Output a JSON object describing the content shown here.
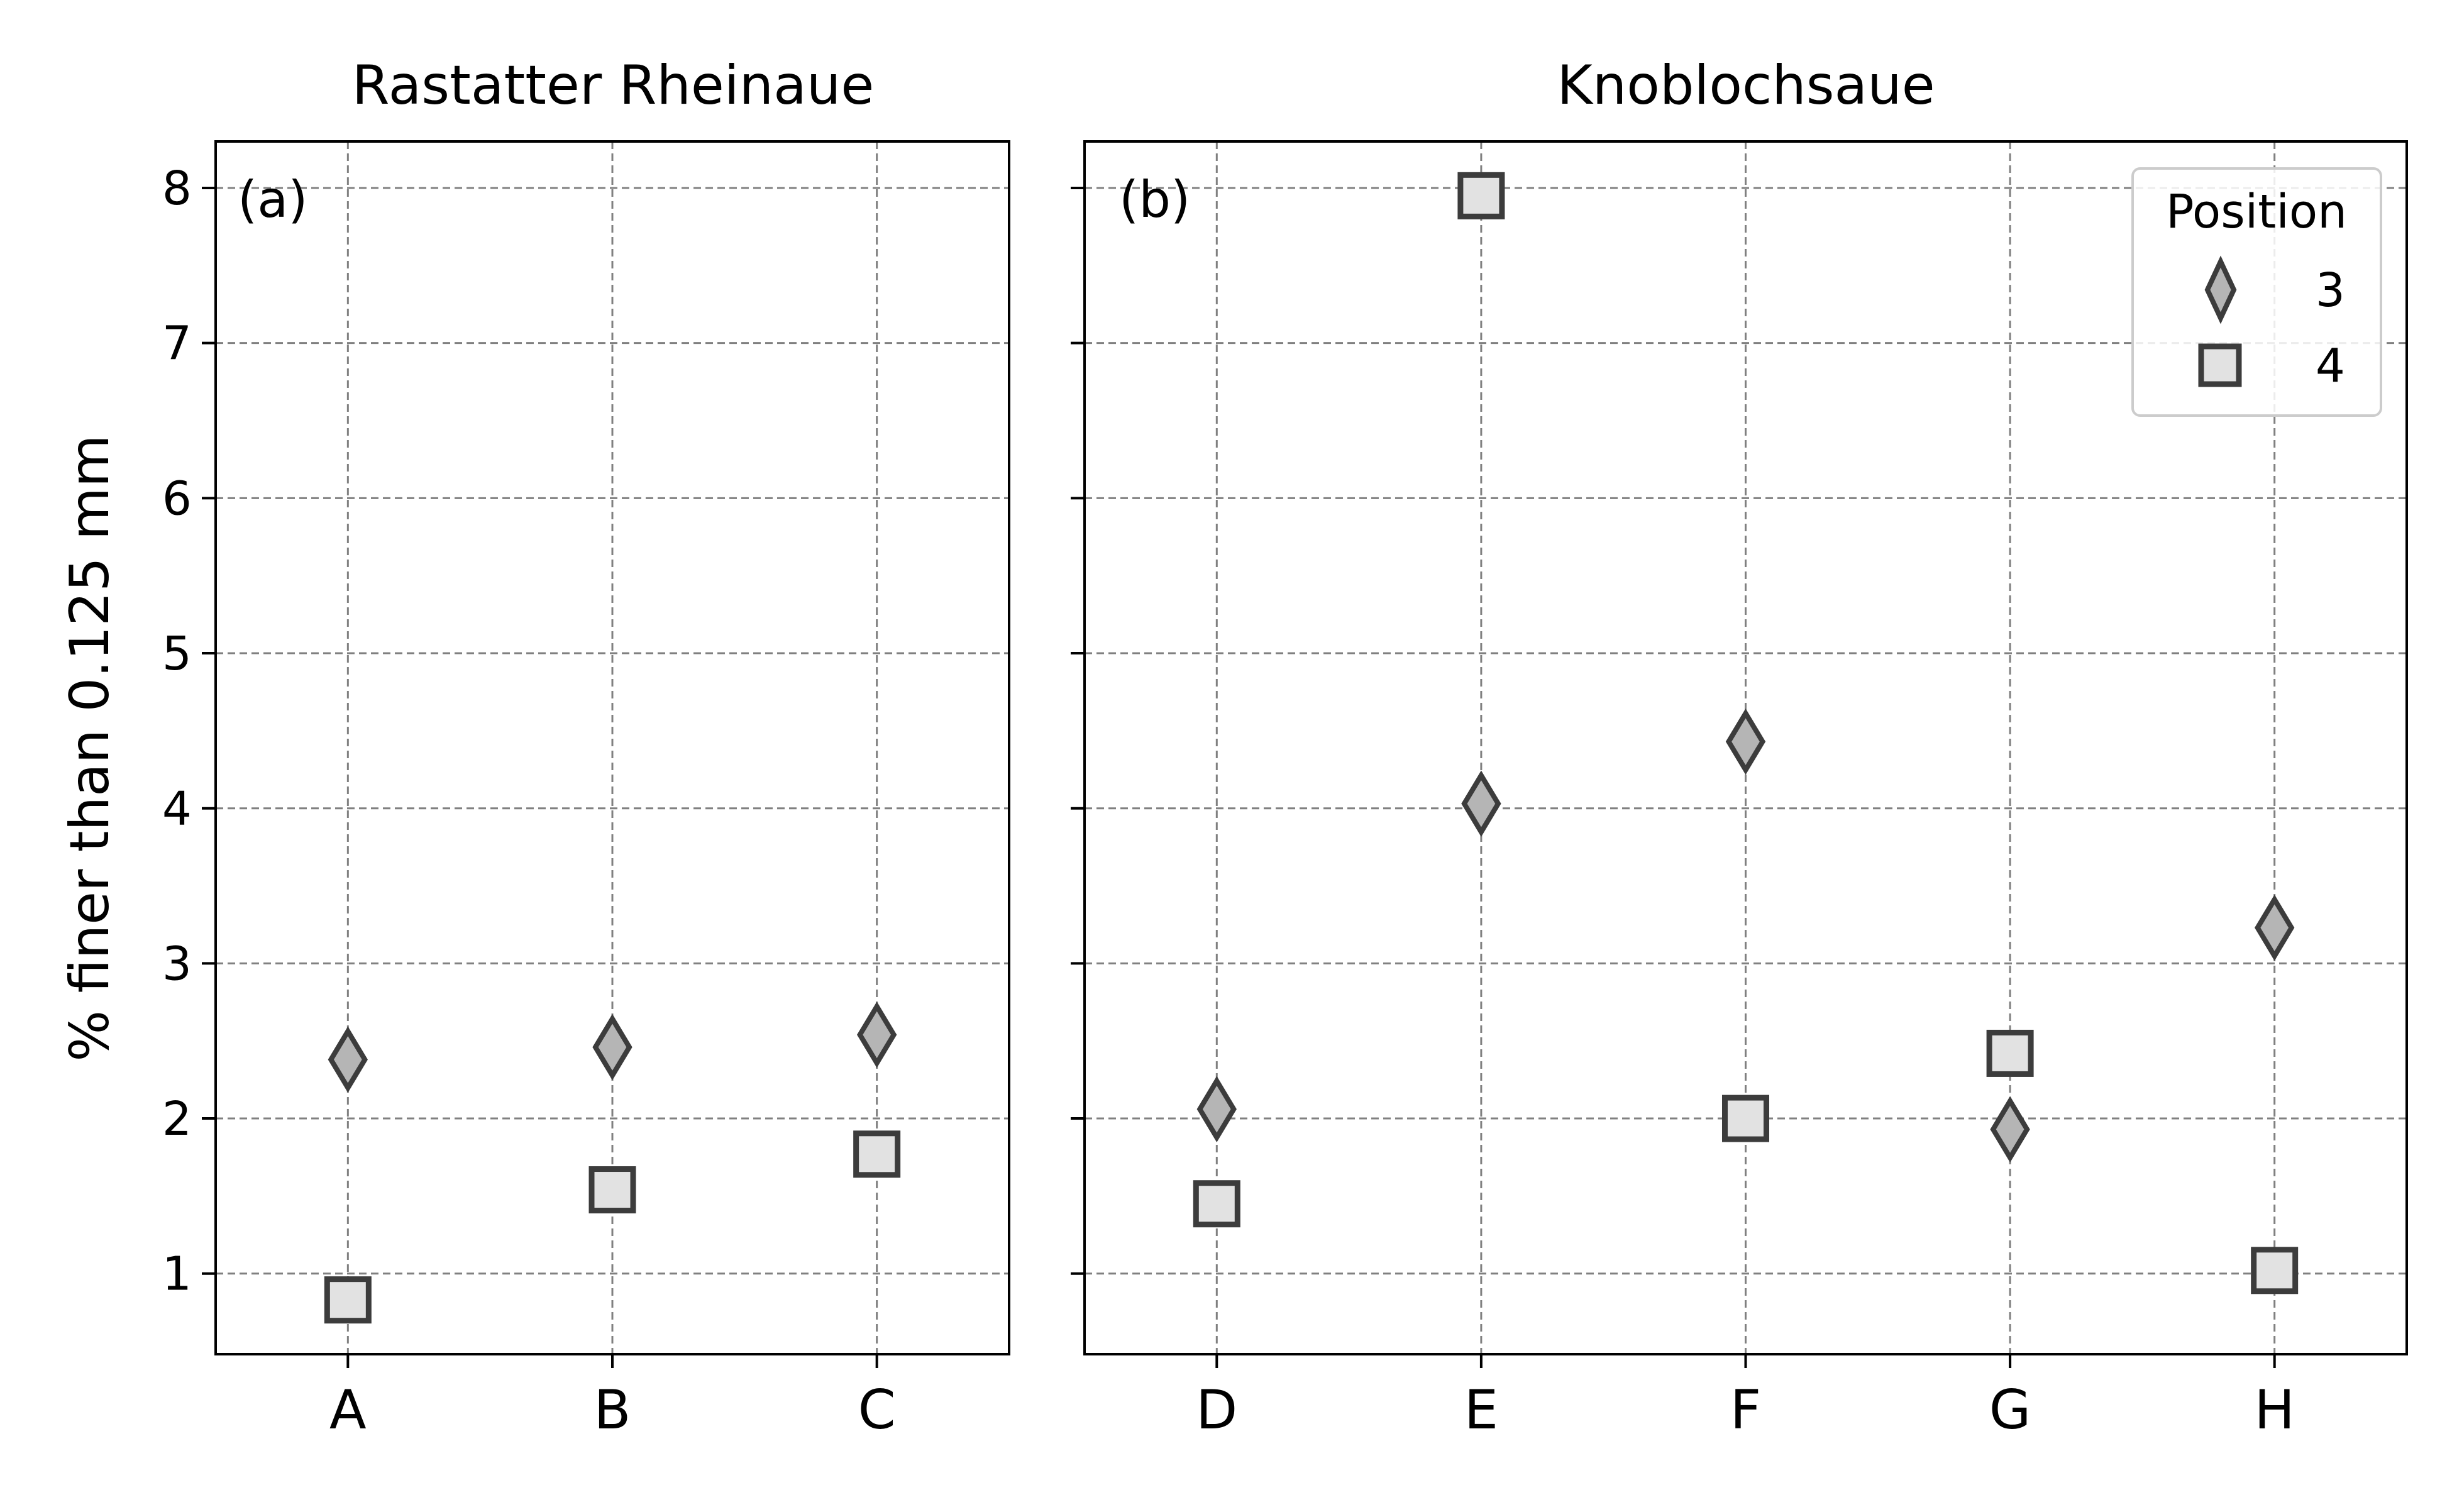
{
  "chart_data": [
    {
      "type": "scatter",
      "panel_label": "(a)",
      "title": "Rastatter Rheinaue",
      "categories": [
        "A",
        "B",
        "C"
      ],
      "ylabel": "% finer than 0.125 mm",
      "ylim": [
        0.48,
        8.3
      ],
      "yticks": [
        "1",
        "2",
        "3",
        "4",
        "5",
        "6",
        "7",
        "8"
      ],
      "grid": true,
      "series": [
        {
          "name": "3",
          "marker": "diamond",
          "values": [
            2.38,
            2.46,
            2.54
          ]
        },
        {
          "name": "4",
          "marker": "square",
          "values": [
            0.83,
            1.54,
            1.77
          ]
        }
      ]
    },
    {
      "type": "scatter",
      "panel_label": "(b)",
      "title": "Knoblochsaue",
      "categories": [
        "D",
        "E",
        "F",
        "G",
        "H"
      ],
      "ylim": [
        0.48,
        8.3
      ],
      "grid": true,
      "series": [
        {
          "name": "3",
          "marker": "diamond",
          "values": [
            2.06,
            4.03,
            4.43,
            1.93,
            3.23
          ]
        },
        {
          "name": "4",
          "marker": "square",
          "values": [
            1.45,
            7.95,
            2.0,
            2.42,
            1.02
          ]
        }
      ],
      "legend": {
        "title": "Position",
        "placement": "top-right",
        "entries": [
          "3",
          "4"
        ]
      }
    }
  ],
  "colors": {
    "diamond_fill": "#b5b5b5",
    "square_fill": "#e2e2e2",
    "marker_edge": "#3c3c3c",
    "grid": "#808080"
  }
}
